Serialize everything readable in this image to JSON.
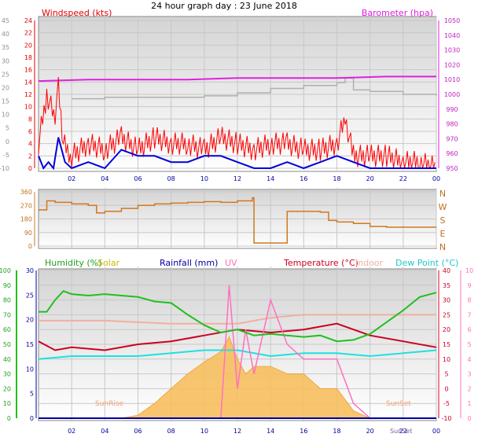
{
  "title": "24 hour graph day : 23 June 2018",
  "colors": {
    "wind": "#e00000",
    "gust": "#ff0000",
    "avg": "#0000dd",
    "baro": "#e020e0",
    "baroFaint": "#b0b0b0",
    "dir": "#d07820",
    "humidity": "#20c020",
    "solar": "#d8c800",
    "rain": "#0000a0",
    "uv": "#ff70c0",
    "temp": "#cc0020",
    "indoor": "#f0b0a0",
    "dew": "#20e0e0",
    "solarFill": "#f8c060",
    "rightBlue": "#00c0c0"
  },
  "top": {
    "left_label": "Windspeed (kts)",
    "right_label": "Barometer (hpa)",
    "y_far_ticks": [
      "45",
      "40",
      "35",
      "30",
      "25",
      "20",
      "15",
      "10",
      "5",
      "0",
      "-5",
      "-10"
    ],
    "y_wind_ticks": [
      "24",
      "22",
      "20",
      "18",
      "16",
      "14",
      "12",
      "10",
      "8",
      "6",
      "4",
      "2",
      "0"
    ],
    "y_baro_ticks": [
      "1050",
      "1040",
      "1030",
      "1020",
      "1010",
      "1000",
      "990",
      "980",
      "970",
      "960",
      "950"
    ]
  },
  "mid": {
    "left_ticks": [
      "360",
      "270",
      "180",
      "90",
      "0"
    ],
    "dir_labels": [
      "N",
      "W",
      "S",
      "E",
      "N"
    ]
  },
  "bottom": {
    "legend": {
      "humidity": "Humidity (%)",
      "solar": "Solar",
      "rainfall": "Rainfall (mm)",
      "uv": "UV",
      "temperature": "Temperature (°C)",
      "indoor": "Indoor",
      "dewpoint": "Dew Point (°C)"
    },
    "y_hum_ticks": [
      "100",
      "90",
      "80",
      "70",
      "60",
      "50",
      "40",
      "30",
      "20",
      "10",
      "0"
    ],
    "y_rain_ticks": [
      "30",
      "25",
      "20",
      "15",
      "10",
      "5",
      "0"
    ],
    "y_temp_ticks": [
      "40",
      "35",
      "30",
      "25",
      "20",
      "15",
      "10",
      "5",
      "0",
      "-5",
      "-10"
    ],
    "y_uv_ticks": [
      "10",
      "9",
      "8",
      "7",
      "6",
      "5",
      "4",
      "3",
      "2",
      "1",
      "0"
    ],
    "sunrise_label": "SunRise",
    "sunset_label": "SunSet",
    "sunset_label2": "SunSet"
  },
  "x_ticks": [
    "02",
    "04",
    "06",
    "08",
    "10",
    "12",
    "14",
    "16",
    "18",
    "20",
    "22",
    "00"
  ],
  "chart_data": [
    {
      "type": "line",
      "title": "24 hour graph day : 23 June 2018",
      "ylabel": "Windspeed (kts)",
      "ylabel_right": "Barometer (hpa)",
      "x_unit": "hour of day",
      "ylim": [
        0,
        24
      ],
      "ylim_right": [
        950,
        1050
      ],
      "series": [
        {
          "name": "Barometer (hpa)",
          "axis": "right",
          "x": [
            0,
            3,
            6,
            9,
            12,
            15,
            18,
            21,
            24
          ],
          "values": [
            1009,
            1010,
            1010,
            1010,
            1011,
            1011,
            1011,
            1012,
            1012
          ]
        },
        {
          "axis": "left",
          "style": "gust",
          "x": [
            0,
            0.5,
            1,
            1.2,
            1.5,
            2,
            3,
            4,
            5,
            6,
            7,
            8,
            9,
            10,
            11,
            12,
            13,
            14,
            15,
            16,
            17,
            18,
            18.5,
            19,
            20,
            21,
            22,
            23,
            24
          ],
          "values": [
            4,
            12,
            8,
            13,
            4,
            2,
            4,
            3,
            5,
            3,
            5,
            4,
            4,
            3,
            5,
            4,
            3,
            4,
            4,
            3,
            3,
            4,
            8,
            2,
            2,
            2,
            1,
            1,
            0
          ]
        },
        {
          "axis": "left",
          "style": "average",
          "x": [
            0,
            0.3,
            0.6,
            0.9,
            1.2,
            1.6,
            2,
            3,
            4,
            5,
            6,
            7,
            8,
            9,
            10,
            11,
            12,
            13,
            14,
            15,
            16,
            17,
            18,
            19,
            20,
            21,
            22,
            23,
            24
          ],
          "values": [
            2,
            0,
            1,
            0,
            5,
            1,
            0,
            1,
            0,
            3,
            2,
            2,
            1,
            1,
            2,
            2,
            1,
            0,
            0,
            1,
            0,
            1,
            2,
            1,
            0,
            0,
            0,
            0,
            0
          ]
        },
        {
          "axis": "right",
          "style": "faint grey",
          "x": [
            2,
            4,
            6,
            8,
            10,
            12,
            14,
            16,
            18,
            18.5,
            19,
            20,
            22,
            24
          ],
          "values": [
            997,
            998,
            998,
            998,
            999,
            1001,
            1004,
            1006,
            1008,
            1011,
            1003,
            1002,
            1000,
            999
          ]
        }
      ]
    },
    {
      "type": "line",
      "x_unit": "hour of day",
      "ylim": [
        0,
        360
      ],
      "series": [
        {
          "x": [
            0,
            0.5,
            1,
            2,
            3,
            3.5,
            4,
            5,
            6,
            7,
            8,
            9,
            10,
            11,
            12,
            12.9,
            13,
            14,
            14.9,
            15,
            16,
            17,
            17.5,
            18,
            19,
            20,
            21,
            22,
            23,
            24
          ],
          "values": [
            240,
            300,
            290,
            280,
            270,
            220,
            230,
            250,
            270,
            280,
            285,
            290,
            295,
            290,
            300,
            320,
            20,
            20,
            20,
            230,
            230,
            225,
            170,
            160,
            150,
            130,
            125,
            125,
            125,
            125
          ]
        }
      ]
    },
    {
      "type": "area",
      "x_unit": "hour of day",
      "ylim": [
        0,
        100
      ],
      "ylim_rain": [
        0,
        30
      ],
      "ylim_temp": [
        -10,
        40
      ],
      "ylim_uv": [
        0,
        10
      ],
      "series": [
        {
          "name": "Humidity (%)",
          "axis": "humidity",
          "x": [
            0,
            0.5,
            1,
            1.5,
            2,
            3,
            4,
            5,
            6,
            7,
            8,
            9,
            10,
            11,
            12,
            13,
            14,
            15,
            16,
            17,
            18,
            19,
            20,
            21,
            22,
            23,
            24
          ],
          "values": [
            72,
            72,
            80,
            86,
            84,
            83,
            84,
            83,
            82,
            79,
            78,
            70,
            63,
            58,
            60,
            56,
            57,
            56,
            55,
            56,
            52,
            53,
            57,
            65,
            73,
            82,
            85
          ]
        },
        {
          "name": "Solar",
          "style": "filled",
          "x": [
            5,
            6,
            7,
            8,
            9,
            10,
            11,
            11.5,
            12,
            12.5,
            13,
            14,
            15,
            16,
            17,
            18,
            19,
            20
          ],
          "values": [
            0,
            2,
            10,
            20,
            30,
            38,
            45,
            55,
            40,
            30,
            35,
            35,
            30,
            30,
            20,
            20,
            5,
            0
          ]
        },
        {
          "name": "Temperature (°C)",
          "axis": "temp",
          "x": [
            0,
            1,
            2,
            4,
            6,
            8,
            10,
            12,
            14,
            16,
            18,
            20,
            22,
            24
          ],
          "values": [
            16,
            13,
            14,
            13,
            15,
            16,
            18,
            20,
            19,
            20,
            22,
            18,
            16,
            14
          ]
        },
        {
          "name": "Indoor",
          "axis": "temp",
          "x": [
            0,
            4,
            8,
            12,
            14,
            16,
            18,
            20,
            22,
            24
          ],
          "values": [
            23,
            23,
            22,
            22,
            24,
            25,
            25,
            25,
            25,
            25
          ]
        },
        {
          "name": "Dew Point (°C)",
          "axis": "temp",
          "x": [
            0,
            2,
            4,
            6,
            8,
            10,
            12,
            14,
            16,
            18,
            20,
            22,
            24
          ],
          "values": [
            10,
            11,
            11,
            11,
            12,
            13,
            13,
            11,
            12,
            12,
            11,
            12,
            13
          ]
        },
        {
          "name": "UV",
          "axis": "uv",
          "x": [
            11,
            11.5,
            12,
            12.5,
            13,
            14,
            15,
            16,
            17,
            18,
            19,
            20
          ],
          "values": [
            0,
            9,
            2,
            6,
            3,
            8,
            5,
            4,
            4,
            4,
            1,
            0
          ]
        },
        {
          "name": "Rainfall (mm)",
          "axis": "rain",
          "x": [
            0,
            24
          ],
          "values": [
            0,
            0
          ]
        }
      ]
    }
  ]
}
